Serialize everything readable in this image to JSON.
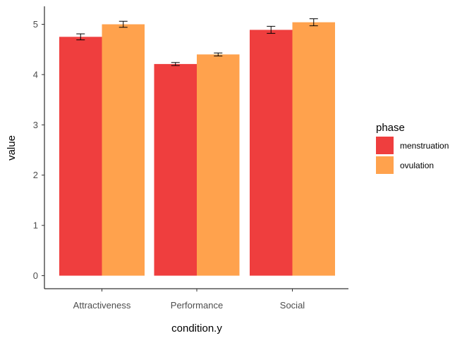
{
  "chart_data": {
    "type": "bar",
    "xlabel": "condition.y",
    "ylabel": "value",
    "categories": [
      "Attractiveness",
      "Performance",
      "Social"
    ],
    "ylim": [
      0,
      5.4
    ],
    "yticks": [
      "0",
      "1",
      "2",
      "3",
      "4",
      "5"
    ],
    "grid": false,
    "legend": {
      "title": "phase",
      "placement": "right"
    },
    "series": [
      {
        "name": "menstruation",
        "color": "#EF3E3E",
        "values": [
          4.75,
          4.21,
          4.89
        ],
        "error": [
          0.06,
          0.03,
          0.07
        ]
      },
      {
        "name": "ovulation",
        "color": "#FFA24D",
        "values": [
          5.0,
          4.4,
          5.04
        ],
        "error": [
          0.06,
          0.03,
          0.07
        ]
      }
    ]
  }
}
